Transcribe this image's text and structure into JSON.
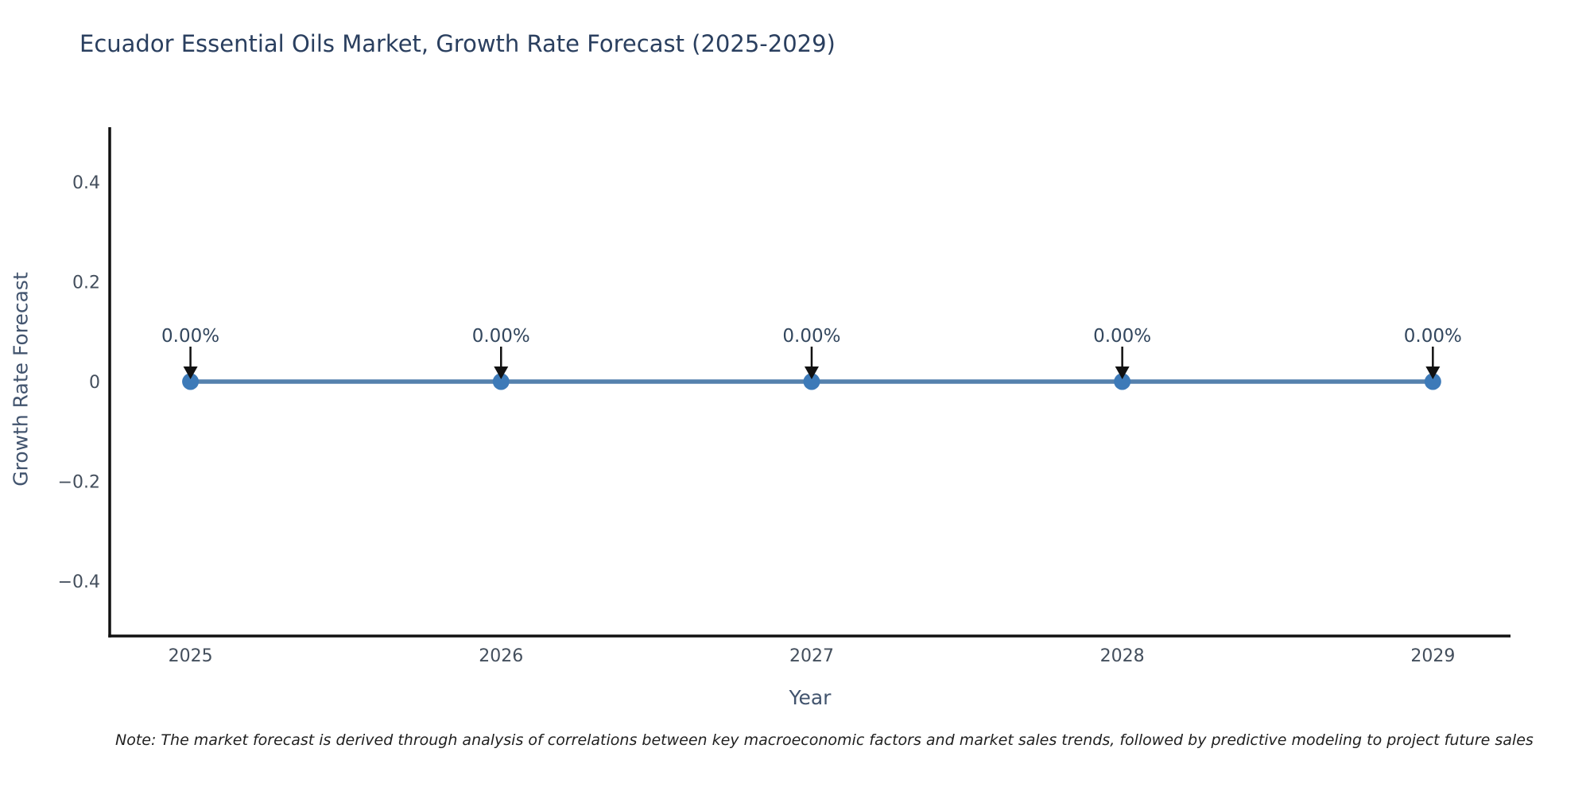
{
  "chart": {
    "title": "Ecuador Essential Oils Market, Growth Rate Forecast (2025-2029)",
    "xlabel": "Year",
    "ylabel": "Growth Rate Forecast",
    "note": "Note: The market forecast is derived through analysis of correlations between key macroeconomic factors and market sales trends, followed by predictive modeling to project future sales"
  },
  "chart_data": {
    "type": "line",
    "title": "Ecuador Essential Oils Market, Growth Rate Forecast (2025-2029)",
    "xlabel": "Year",
    "ylabel": "Growth Rate Forecast",
    "x": [
      2025,
      2026,
      2027,
      2028,
      2029
    ],
    "categories": [
      "2025",
      "2026",
      "2027",
      "2028",
      "2029"
    ],
    "series": [
      {
        "name": "Growth Rate Forecast",
        "values": [
          0,
          0,
          0,
          0,
          0
        ]
      }
    ],
    "point_labels": [
      "0.00%",
      "0.00%",
      "0.00%",
      "0.00%",
      "0.00%"
    ],
    "xlim": [
      2024.74,
      2029.25
    ],
    "ylim": [
      -0.51,
      0.51
    ],
    "yticks": {
      "values": [
        0.4,
        0.2,
        0,
        -0.2,
        -0.4
      ],
      "labels": [
        "0.4",
        "0.2",
        "0",
        "−0.2",
        "−0.4"
      ]
    },
    "grid": false,
    "legend": false,
    "annotation_arrows": true,
    "colors": {
      "line": "#5581ad",
      "marker": "#3d7ab8",
      "axis": "#111111",
      "tick_label": "#444f5d",
      "title": "#2a3f5f",
      "axis_title": "#42546e",
      "annotation": "#33475e",
      "arrow": "#111111",
      "note": "#1f1f1f"
    }
  }
}
